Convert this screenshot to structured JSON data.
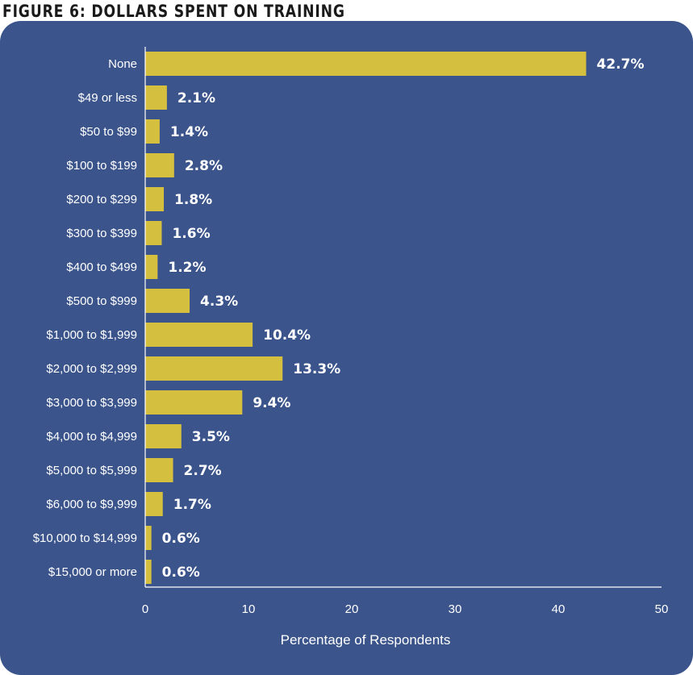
{
  "chart_data": {
    "type": "bar",
    "orientation": "horizontal",
    "title": "FIGURE 6: DOLLARS SPENT ON TRAINING",
    "xlabel": "Percentage of Respondents",
    "ylabel": "",
    "xlim": [
      0,
      50
    ],
    "xticks": [
      "0",
      "10",
      "20",
      "30",
      "40",
      "50"
    ],
    "categories": [
      "None",
      "$49 or less",
      "$50 to $99",
      "$100 to $199",
      "$200 to $299",
      "$300 to $399",
      "$400 to $499",
      "$500 to $999",
      "$1,000 to $1,999",
      "$2,000 to $2,999",
      "$3,000 to $3,999",
      "$4,000 to $4,999",
      "$5,000 to $5,999",
      "$6,000 to $9,999",
      "$10,000 to $14,999",
      "$15,000 or more"
    ],
    "values": [
      42.7,
      2.1,
      1.4,
      2.8,
      1.8,
      1.6,
      1.2,
      4.3,
      10.4,
      13.3,
      9.4,
      3.5,
      2.7,
      1.7,
      0.6,
      0.6
    ],
    "value_labels": [
      "42.7%",
      "2.1%",
      "1.4%",
      "2.8%",
      "1.8%",
      "1.6%",
      "1.2%",
      "4.3%",
      "10.4%",
      "13.3%",
      "9.4%",
      "3.5%",
      "2.7%",
      "1.7%",
      "0.6%",
      "0.6%"
    ],
    "grid": false,
    "legend": "none",
    "colors": {
      "bar": "#d4bf3f",
      "background": "#3b548c",
      "text": "#ffffff"
    }
  }
}
